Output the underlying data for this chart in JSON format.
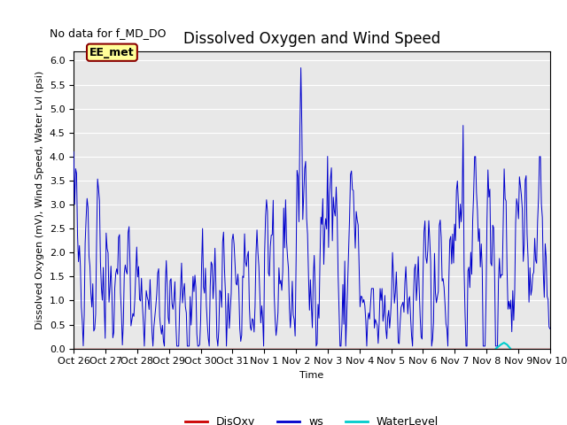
{
  "title": "Dissolved Oxygen and Wind Speed",
  "no_data_text": "No data for f_MD_DO",
  "annotation_text": "EE_met",
  "ylabel": "Dissolved Oxygen (mV), Wind Speed, Water Lvl (psi)",
  "xlabel": "Time",
  "ylim": [
    0.0,
    6.2
  ],
  "yticks": [
    0.0,
    0.5,
    1.0,
    1.5,
    2.0,
    2.5,
    3.0,
    3.5,
    4.0,
    4.5,
    5.0,
    5.5,
    6.0
  ],
  "xtick_labels": [
    "Oct 26",
    "Oct 27",
    "Oct 28",
    "Oct 29",
    "Oct 30",
    "Oct 31",
    "Nov 1",
    "Nov 2",
    "Nov 3",
    "Nov 4",
    "Nov 5",
    "Nov 6",
    "Nov 7",
    "Nov 8",
    "Nov 9",
    "Nov 10"
  ],
  "ws_color": "#0000cc",
  "disoxy_color": "#cc0000",
  "water_color": "#00cccc",
  "bg_color": "#e8e8e8",
  "legend_labels": [
    "DisOxy",
    "ws",
    "WaterLevel"
  ],
  "annotation_facecolor": "#ffff99",
  "annotation_edgecolor": "#8b0000",
  "title_fontsize": 12,
  "label_fontsize": 8,
  "tick_fontsize": 8,
  "no_data_fontsize": 9,
  "annotation_fontsize": 9,
  "legend_fontsize": 9
}
